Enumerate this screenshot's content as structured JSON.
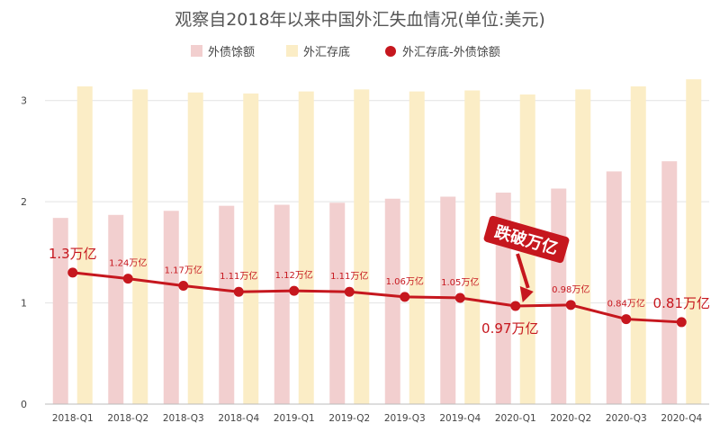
{
  "chart_data": {
    "type": "bar",
    "title": "观察自2018年以来中国外汇失血情况(单位:美元)",
    "categories": [
      "2018-Q1",
      "2018-Q2",
      "2018-Q3",
      "2018-Q4",
      "2019-Q1",
      "2019-Q2",
      "2019-Q3",
      "2019-Q4",
      "2020-Q1",
      "2020-Q2",
      "2020-Q3",
      "2020-Q4"
    ],
    "ylim": [
      0,
      3.3
    ],
    "yticks": [
      0,
      1,
      2,
      3
    ],
    "grid": true,
    "legend_position": "top",
    "series": [
      {
        "name": "外债馀额",
        "kind": "bar",
        "color": "#f2cfcf",
        "values": [
          1.84,
          1.87,
          1.91,
          1.96,
          1.97,
          1.99,
          2.03,
          2.05,
          2.09,
          2.13,
          2.3,
          2.4
        ]
      },
      {
        "name": "外汇存底",
        "kind": "bar",
        "color": "#fbedc6",
        "values": [
          3.14,
          3.11,
          3.08,
          3.07,
          3.09,
          3.11,
          3.09,
          3.1,
          3.06,
          3.11,
          3.14,
          3.21
        ]
      },
      {
        "name": "外汇存底-外债馀额",
        "kind": "line",
        "color": "#c6171e",
        "values": [
          1.3,
          1.24,
          1.17,
          1.11,
          1.12,
          1.11,
          1.06,
          1.05,
          0.97,
          0.98,
          0.84,
          0.81
        ]
      }
    ],
    "data_labels": [
      "1.3万亿",
      "1.24万亿",
      "1.17万亿",
      "1.11万亿",
      "1.12万亿",
      "1.11万亿",
      "1.06万亿",
      "1.05万亿",
      "0.97万亿",
      "0.98万亿",
      "0.84万亿",
      "0.81万亿"
    ],
    "callout": {
      "text": "跌破万亿",
      "target_category": "2020-Q1"
    }
  }
}
